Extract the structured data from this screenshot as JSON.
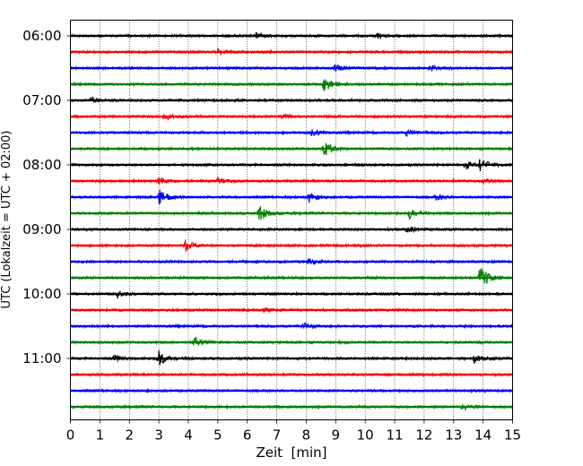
{
  "chart_data": {
    "type": "line",
    "title": "",
    "xlabel": "Zeit  [min]",
    "ylabel": "UTC (Lokalzeit = UTC + 02:00)",
    "xlim": [
      0,
      15
    ],
    "x_ticks": [
      0,
      1,
      2,
      3,
      4,
      5,
      6,
      7,
      8,
      9,
      10,
      11,
      12,
      13,
      14,
      15
    ],
    "grid": "vertical dotted at each minute",
    "y_tick_labels": [
      {
        "trace": 0,
        "label": "06:00"
      },
      {
        "trace": 4,
        "label": "07:00"
      },
      {
        "trace": 8,
        "label": "08:00"
      },
      {
        "trace": 12,
        "label": "09:00"
      },
      {
        "trace": 16,
        "label": "10:00"
      },
      {
        "trace": 20,
        "label": "11:00"
      }
    ],
    "color_cycle": [
      "#000000",
      "#ff0000",
      "#0000ff",
      "#008000"
    ],
    "traces": [
      {
        "start": "06:00",
        "color": "#000000",
        "events": [
          {
            "t": 6.3,
            "amp": 3
          },
          {
            "t": 10.4,
            "amp": 3
          }
        ]
      },
      {
        "start": "06:15",
        "color": "#ff0000",
        "events": [
          {
            "t": 5.0,
            "amp": 3
          }
        ]
      },
      {
        "start": "06:30",
        "color": "#0000ff",
        "events": [
          {
            "t": 9.0,
            "amp": 4
          },
          {
            "t": 12.2,
            "amp": 3
          }
        ]
      },
      {
        "start": "06:45",
        "color": "#008000",
        "events": [
          {
            "t": 8.6,
            "amp": 9
          }
        ]
      },
      {
        "start": "07:00",
        "color": "#000000",
        "events": [
          {
            "t": 0.7,
            "amp": 3
          }
        ]
      },
      {
        "start": "07:15",
        "color": "#ff0000",
        "events": [
          {
            "t": 3.2,
            "amp": 4
          },
          {
            "t": 7.2,
            "amp": 2
          }
        ]
      },
      {
        "start": "07:30",
        "color": "#0000ff",
        "events": [
          {
            "t": 8.2,
            "amp": 3
          },
          {
            "t": 11.4,
            "amp": 3
          }
        ]
      },
      {
        "start": "07:45",
        "color": "#008000",
        "events": [
          {
            "t": 8.6,
            "amp": 9
          }
        ]
      },
      {
        "start": "08:00",
        "color": "#000000",
        "events": [
          {
            "t": 13.4,
            "amp": 4
          },
          {
            "t": 13.9,
            "amp": 7
          }
        ]
      },
      {
        "start": "08:15",
        "color": "#ff0000",
        "events": [
          {
            "t": 3.0,
            "amp": 3
          },
          {
            "t": 5.0,
            "amp": 3
          },
          {
            "t": 14.0,
            "amp": 2
          }
        ]
      },
      {
        "start": "08:30",
        "color": "#0000ff",
        "events": [
          {
            "t": 3.0,
            "amp": 10
          },
          {
            "t": 8.1,
            "amp": 6
          },
          {
            "t": 12.4,
            "amp": 3
          }
        ]
      },
      {
        "start": "08:45",
        "color": "#008000",
        "events": [
          {
            "t": 6.4,
            "amp": 9
          },
          {
            "t": 11.5,
            "amp": 6
          }
        ]
      },
      {
        "start": "09:00",
        "color": "#000000",
        "events": [
          {
            "t": 11.4,
            "amp": 5
          }
        ]
      },
      {
        "start": "09:15",
        "color": "#ff0000",
        "events": [
          {
            "t": 3.9,
            "amp": 6
          }
        ]
      },
      {
        "start": "09:30",
        "color": "#0000ff",
        "events": [
          {
            "t": 8.1,
            "amp": 3
          }
        ]
      },
      {
        "start": "09:45",
        "color": "#008000",
        "events": [
          {
            "t": 13.9,
            "amp": 14
          }
        ]
      },
      {
        "start": "10:00",
        "color": "#000000",
        "events": [
          {
            "t": 1.6,
            "amp": 4
          }
        ]
      },
      {
        "start": "10:15",
        "color": "#ff0000",
        "events": [
          {
            "t": 6.6,
            "amp": 2
          }
        ]
      },
      {
        "start": "10:30",
        "color": "#0000ff",
        "events": [
          {
            "t": 7.9,
            "amp": 3
          }
        ]
      },
      {
        "start": "10:45",
        "color": "#008000",
        "events": [
          {
            "t": 4.2,
            "amp": 7
          }
        ]
      },
      {
        "start": "11:00",
        "color": "#000000",
        "events": [
          {
            "t": 1.5,
            "amp": 3
          },
          {
            "t": 3.0,
            "amp": 9
          },
          {
            "t": 13.7,
            "amp": 4
          }
        ]
      },
      {
        "start": "11:15",
        "color": "#ff0000",
        "events": []
      },
      {
        "start": "11:30",
        "color": "#0000ff",
        "events": []
      },
      {
        "start": "11:45",
        "color": "#008000",
        "events": [
          {
            "t": 13.3,
            "amp": 3
          }
        ]
      }
    ]
  }
}
